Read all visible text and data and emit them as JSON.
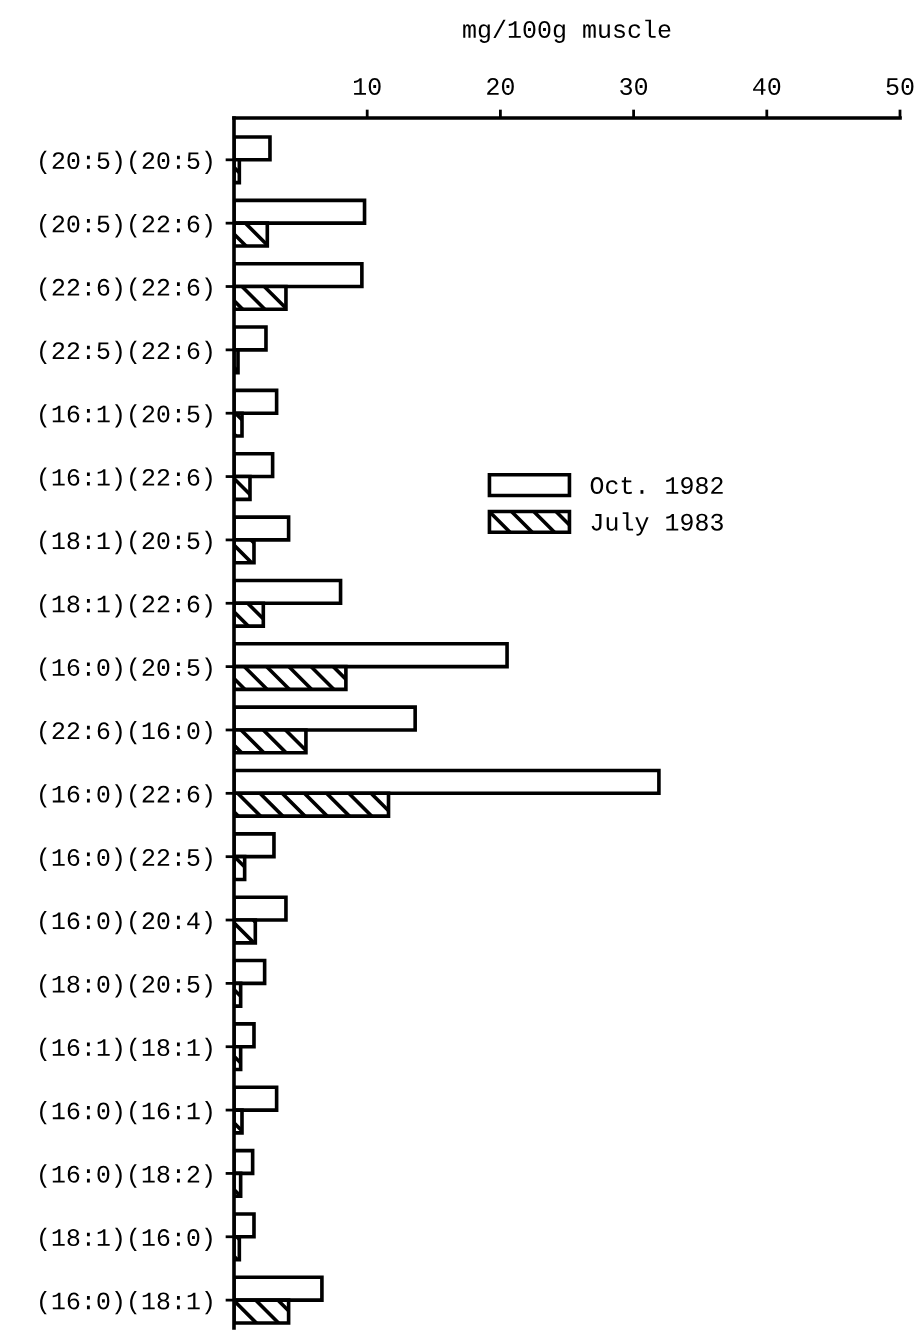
{
  "chart_data": {
    "type": "bar",
    "orientation": "horizontal",
    "xlabel": "mg/100g muscle",
    "categories": [
      "(20:5)(20:5)",
      "(20:5)(22:6)",
      "(22:6)(22:6)",
      "(22:5)(22:6)",
      "(16:1)(20:5)",
      "(16:1)(22:6)",
      "(18:1)(20:5)",
      "(18:1)(22:6)",
      "(16:0)(20:5)",
      "(22:6)(16:0)",
      "(16:0)(22:6)",
      "(16:0)(22:5)",
      "(16:0)(20:4)",
      "(18:0)(20:5)",
      "(16:1)(18:1)",
      "(16:0)(16:1)",
      "(16:0)(18:2)",
      "(18:1)(16:0)",
      "(16:0)(18:1)"
    ],
    "series": [
      {
        "name": "Oct. 1982",
        "color": "#ffffff",
        "values": [
          2.7,
          9.8,
          9.6,
          2.4,
          3.2,
          2.9,
          4.1,
          8.0,
          20.5,
          13.6,
          31.9,
          3.0,
          3.9,
          2.3,
          1.5,
          3.2,
          1.4,
          1.5,
          6.6
        ]
      },
      {
        "name": "July 1983",
        "color": "#000000",
        "values": [
          0.4,
          2.5,
          3.9,
          0.3,
          0.6,
          1.2,
          1.5,
          2.2,
          8.4,
          5.4,
          11.6,
          0.8,
          1.6,
          0.5,
          0.5,
          0.6,
          0.5,
          0.4,
          4.1
        ]
      }
    ],
    "xlim": [
      0,
      50
    ],
    "xticks": [
      10,
      20,
      30,
      40,
      50
    ],
    "legend": "center"
  }
}
